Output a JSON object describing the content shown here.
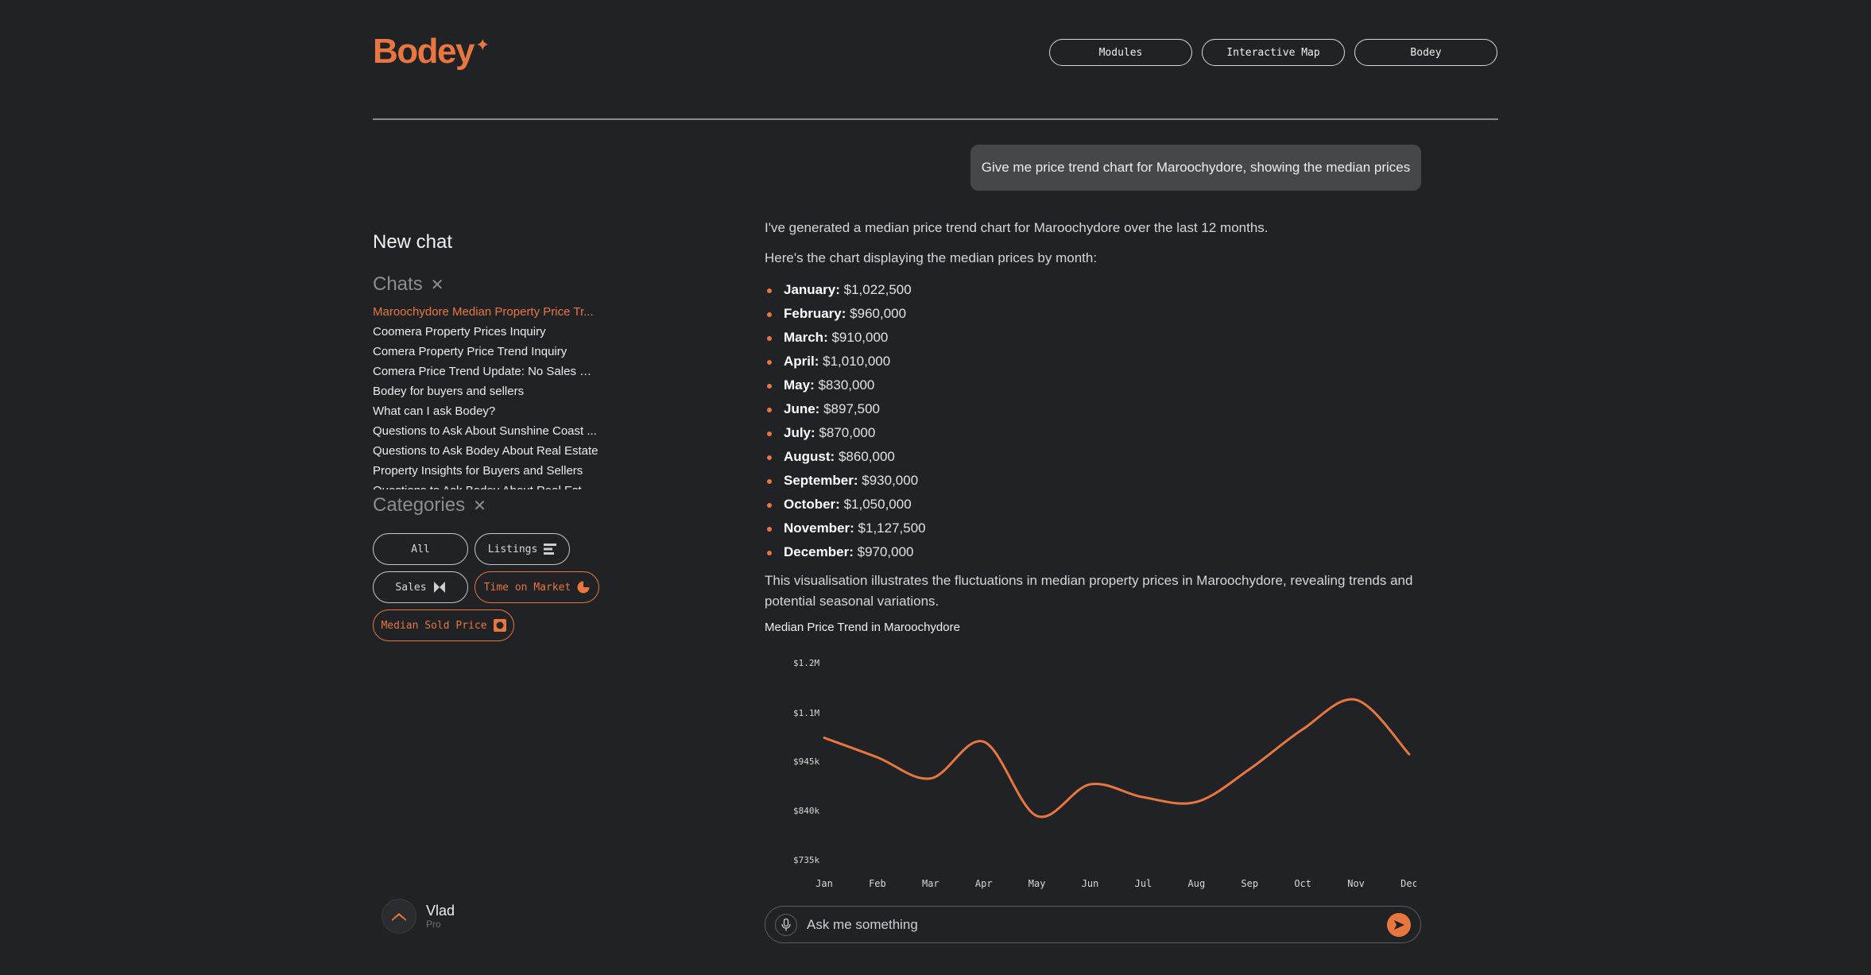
{
  "brand": {
    "logo_text": "Bodey",
    "accent": "#e8773f",
    "background": "#212225"
  },
  "nav": {
    "items": [
      "Modules",
      "Interactive Map",
      "Bodey"
    ]
  },
  "sidebar": {
    "new_chat": "New chat",
    "chats_title": "Chats",
    "chats": [
      "Maroochydore Median Property Price Tr...",
      "Coomera Property Prices Inquiry",
      "Comera Property Price Trend Inquiry",
      "Comera Price Trend Update: No Sales Re...",
      "Bodey for buyers and sellers",
      "What can I ask Bodey?",
      "Questions to Ask About Sunshine Coast ...",
      "Questions to Ask Bodey About Real Estate",
      "Property Insights for Buyers and Sellers",
      "Questions to Ask Bodey About Real Estat..."
    ],
    "categories_title": "Categories",
    "categories": [
      {
        "label": "All",
        "icon": ""
      },
      {
        "label": "Listings",
        "icon": "bar-list-icon"
      },
      {
        "label": "Sales",
        "icon": "bowtie-icon"
      },
      {
        "label": "Time on Market",
        "icon": "pie-clock-icon"
      },
      {
        "label": "Median Sold Price",
        "icon": "square-circle-icon"
      }
    ],
    "user": {
      "name": "Vlad",
      "plan": "Pro"
    }
  },
  "chat": {
    "user_message": "Give me price trend chart for Maroochydore, showing the median prices",
    "reply_intro": "I've generated a median price trend chart for Maroochydore over the last 12 months.",
    "reply_lead": "Here's the chart displaying the median prices by month:",
    "months": [
      {
        "label": "January:",
        "value": "$1,022,500"
      },
      {
        "label": "February:",
        "value": "$960,000"
      },
      {
        "label": "March:",
        "value": "$910,000"
      },
      {
        "label": "April:",
        "value": "$1,010,000"
      },
      {
        "label": "May:",
        "value": "$830,000"
      },
      {
        "label": "June:",
        "value": "$897,500"
      },
      {
        "label": "July:",
        "value": "$870,000"
      },
      {
        "label": "August:",
        "value": "$860,000"
      },
      {
        "label": "September:",
        "value": "$930,000"
      },
      {
        "label": "October:",
        "value": "$1,050,000"
      },
      {
        "label": "November:",
        "value": "$1,127,500"
      },
      {
        "label": "December:",
        "value": "$970,000"
      }
    ],
    "reply_outro": "This visualisation illustrates the fluctuations in median property prices in Maroochydore, revealing trends and potential seasonal variations.",
    "composer_placeholder": "Ask me something"
  },
  "chart_data": {
    "type": "line",
    "title": "Median Price Trend in Maroochydore",
    "categories": [
      "Jan",
      "Feb",
      "Mar",
      "Apr",
      "May",
      "Jun",
      "Jul",
      "Aug",
      "Sep",
      "Oct",
      "Nov",
      "Dec"
    ],
    "values": [
      1022500,
      960000,
      910000,
      1010000,
      830000,
      897500,
      870000,
      860000,
      930000,
      1050000,
      1127500,
      970000
    ],
    "y_ticks": [
      {
        "value": 1200000,
        "label": "$1.2M"
      },
      {
        "value": 1100000,
        "label": "$1.1M"
      },
      {
        "value": 945000,
        "label": "$945k"
      },
      {
        "value": 840000,
        "label": "$840k"
      },
      {
        "value": 735000,
        "label": "$735k"
      }
    ],
    "grid": false,
    "line_color": "#e8773f"
  }
}
